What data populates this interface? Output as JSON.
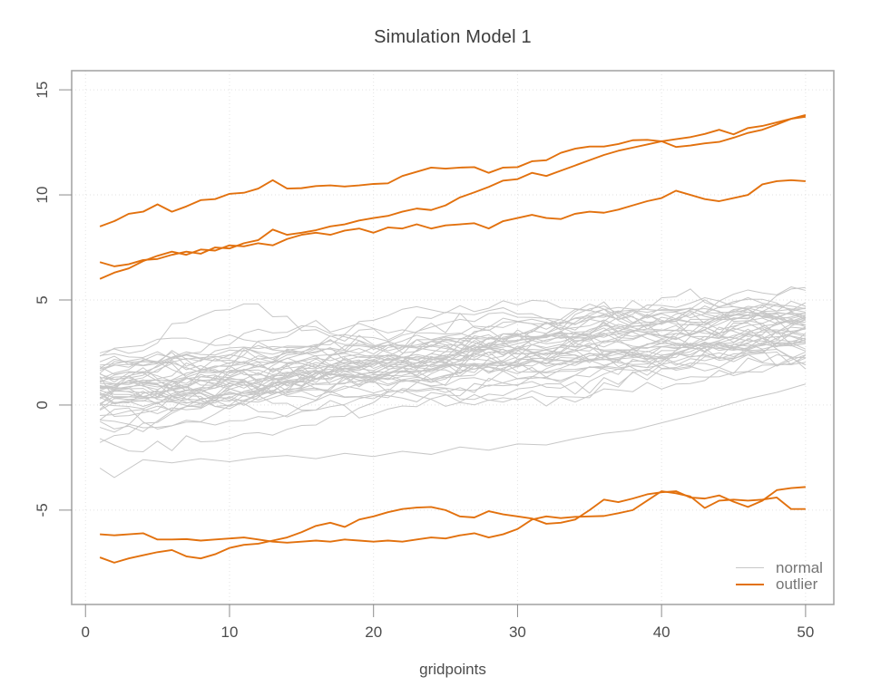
{
  "page": {
    "background": "#FFFFFF"
  },
  "chart_data": {
    "type": "line",
    "title": "Simulation Model 1",
    "xlabel": "gridpoints",
    "ylabel": "",
    "x_ticks": [
      0,
      10,
      20,
      30,
      40,
      50
    ],
    "y_ticks": [
      -5,
      0,
      5,
      10,
      15
    ],
    "xlim": [
      -0.96,
      51.96
    ],
    "ylim": [
      -9.49,
      15.91
    ],
    "grid": "dotted",
    "x_start": 1,
    "x_end": 50,
    "n_points": 50,
    "legend": {
      "position": "bottom-right",
      "entries": [
        {
          "label": "normal",
          "color": "#C7C7C7"
        },
        {
          "label": "outlier",
          "color": "#E2710E"
        }
      ]
    },
    "style": {
      "outlier_color": "#E2710E",
      "normal_color": "#C7C7C7",
      "grid_color": "#E2E2E2",
      "box_color": "#A6A6A6",
      "tick_color": "#8C8C8C",
      "tick_label_color": "#4D4D4D",
      "title_color": "#3C3C3C",
      "legend_text_color": "#757575",
      "outlier_width": 1.9,
      "normal_width": 1
    },
    "outlier_series": [
      {
        "name": "outlier-upper-1",
        "values": [
          8.5,
          8.75,
          9.1,
          9.2,
          9.55,
          9.2,
          9.45,
          9.75,
          9.8,
          10.05,
          10.1,
          10.3,
          10.7,
          10.3,
          10.32,
          10.42,
          10.45,
          10.4,
          10.45,
          10.52,
          10.55,
          10.9,
          11.1,
          11.3,
          11.25,
          11.3,
          11.32,
          11.05,
          11.3,
          11.32,
          11.6,
          11.65,
          12.0,
          12.2,
          12.3,
          12.3,
          12.42,
          12.6,
          12.62,
          12.55,
          12.28,
          12.35,
          12.45,
          12.52,
          12.72,
          12.95,
          13.1,
          13.35,
          13.62,
          13.8
        ]
      },
      {
        "name": "outlier-upper-2",
        "values": [
          6.8,
          6.6,
          6.7,
          6.9,
          6.95,
          7.15,
          7.3,
          7.2,
          7.5,
          7.45,
          7.7,
          7.85,
          8.35,
          8.1,
          8.2,
          8.32,
          8.5,
          8.6,
          8.78,
          8.9,
          9.0,
          9.2,
          9.35,
          9.28,
          9.5,
          9.88,
          10.12,
          10.38,
          10.68,
          10.75,
          11.05,
          10.9,
          11.15,
          11.4,
          11.65,
          11.9,
          12.1,
          12.25,
          12.4,
          12.55,
          12.65,
          12.75,
          12.9,
          13.1,
          12.88,
          13.18,
          13.28,
          13.45,
          13.62,
          13.72
        ]
      },
      {
        "name": "outlier-upper-3",
        "values": [
          6.0,
          6.3,
          6.5,
          6.85,
          7.1,
          7.3,
          7.15,
          7.4,
          7.35,
          7.6,
          7.55,
          7.7,
          7.6,
          7.9,
          8.1,
          8.2,
          8.1,
          8.3,
          8.4,
          8.2,
          8.45,
          8.4,
          8.6,
          8.4,
          8.55,
          8.6,
          8.65,
          8.4,
          8.75,
          8.9,
          9.05,
          8.9,
          8.85,
          9.1,
          9.2,
          9.15,
          9.3,
          9.5,
          9.7,
          9.85,
          10.2,
          10.0,
          9.8,
          9.7,
          9.85,
          10.0,
          10.5,
          10.65,
          10.7,
          10.65
        ]
      },
      {
        "name": "outlier-lower-1",
        "values": [
          -6.15,
          -6.2,
          -6.15,
          -6.1,
          -6.4,
          -6.4,
          -6.38,
          -6.45,
          -6.4,
          -6.35,
          -6.3,
          -6.4,
          -6.5,
          -6.55,
          -6.5,
          -6.45,
          -6.5,
          -6.4,
          -6.45,
          -6.5,
          -6.45,
          -6.5,
          -6.4,
          -6.3,
          -6.35,
          -6.2,
          -6.1,
          -6.3,
          -6.15,
          -5.9,
          -5.45,
          -5.3,
          -5.38,
          -5.32,
          -5.3,
          -5.28,
          -5.15,
          -5.0,
          -4.55,
          -4.1,
          -4.2,
          -4.35,
          -4.9,
          -4.55,
          -4.5,
          -4.55,
          -4.5,
          -4.4,
          -4.95,
          -4.95
        ]
      },
      {
        "name": "outlier-lower-2",
        "values": [
          -7.25,
          -7.5,
          -7.3,
          -7.15,
          -7.0,
          -6.9,
          -7.2,
          -7.3,
          -7.1,
          -6.8,
          -6.65,
          -6.6,
          -6.45,
          -6.3,
          -6.05,
          -5.75,
          -5.6,
          -5.8,
          -5.45,
          -5.3,
          -5.1,
          -4.95,
          -4.88,
          -4.85,
          -5.0,
          -5.3,
          -5.35,
          -5.05,
          -5.2,
          -5.3,
          -5.4,
          -5.65,
          -5.6,
          -5.45,
          -5.0,
          -4.5,
          -4.62,
          -4.45,
          -4.25,
          -4.15,
          -4.1,
          -4.4,
          -4.45,
          -4.3,
          -4.6,
          -4.85,
          -4.55,
          -4.05,
          -3.95,
          -3.9
        ]
      }
    ],
    "normal_series": {
      "count": 48,
      "seed": 11,
      "start_mean": 0.55,
      "start_sd": 1.0,
      "start_clip": [
        -2.2,
        2.6
      ],
      "end_mean": 3.8,
      "end_sd": 1.0,
      "end_clip": [
        1.9,
        6.8
      ],
      "wiggle_sd": 0.22,
      "jitter_sd": 0.12
    },
    "normal_low_series": {
      "x": [
        1,
        2,
        4,
        6,
        8,
        10,
        12,
        14,
        16,
        18,
        20,
        22,
        24,
        26,
        28,
        30,
        32,
        34,
        36,
        38,
        40,
        42,
        44,
        46,
        48,
        50
      ],
      "y": [
        -3.0,
        -3.45,
        -2.6,
        -2.75,
        -2.55,
        -2.7,
        -2.5,
        -2.4,
        -2.55,
        -2.3,
        -2.45,
        -2.2,
        -2.35,
        -2.0,
        -2.15,
        -1.85,
        -1.9,
        -1.6,
        -1.35,
        -1.2,
        -0.85,
        -0.5,
        -0.1,
        0.3,
        0.6,
        1.0
      ]
    }
  }
}
